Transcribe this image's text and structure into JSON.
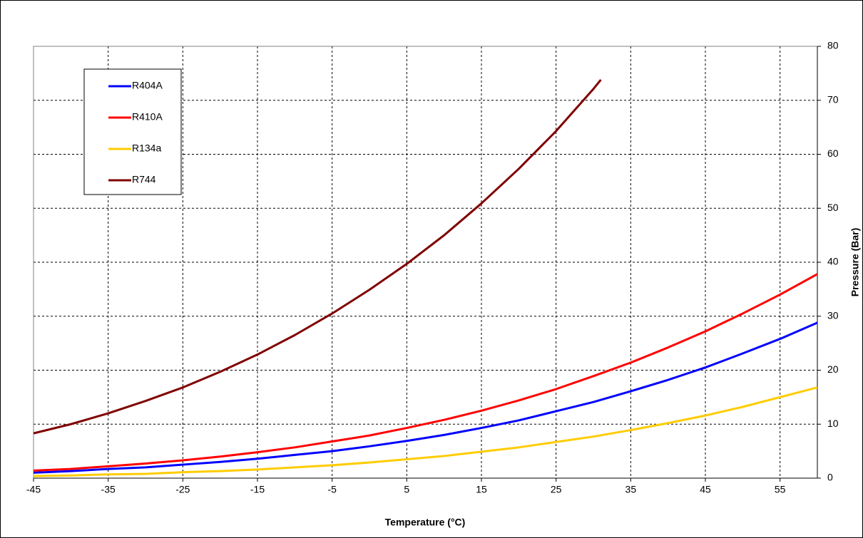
{
  "chart_data": {
    "type": "line",
    "x_label": "Temperature (°C)",
    "y_label": "Pressure (Bar)",
    "xlim": [
      -45,
      60
    ],
    "xticks": [
      -45,
      -35,
      -25,
      -15,
      -5,
      5,
      15,
      25,
      35,
      45,
      55
    ],
    "ylim": [
      0,
      80
    ],
    "yticks": [
      0,
      10,
      20,
      30,
      40,
      50,
      60,
      70,
      80
    ],
    "grid": true,
    "legend": "upper-left",
    "y_axis_side": "right",
    "series": [
      {
        "name": "R404A",
        "color": "#0000ff",
        "x": [
          -45,
          -40,
          -35,
          -30,
          -25,
          -20,
          -15,
          -10,
          -5,
          0,
          5,
          10,
          15,
          20,
          25,
          30,
          35,
          40,
          45,
          50,
          55,
          60
        ],
        "values": [
          1.0,
          1.3,
          1.7,
          2.0,
          2.5,
          3.0,
          3.6,
          4.3,
          5.0,
          5.9,
          6.9,
          8.0,
          9.3,
          10.7,
          12.4,
          14.1,
          16.1,
          18.2,
          20.5,
          23.1,
          25.8,
          28.8
        ]
      },
      {
        "name": "R410A",
        "color": "#ff0000",
        "x": [
          -45,
          -40,
          -35,
          -30,
          -25,
          -20,
          -15,
          -10,
          -5,
          0,
          5,
          10,
          15,
          20,
          25,
          30,
          35,
          40,
          45,
          50,
          55,
          60
        ],
        "values": [
          1.4,
          1.7,
          2.2,
          2.7,
          3.3,
          4.0,
          4.8,
          5.7,
          6.8,
          7.9,
          9.3,
          10.8,
          12.5,
          14.4,
          16.5,
          18.9,
          21.4,
          24.2,
          27.2,
          30.5,
          34.0,
          37.8
        ]
      },
      {
        "name": "R134a",
        "color": "#ffcc00",
        "x": [
          -45,
          -40,
          -35,
          -30,
          -25,
          -20,
          -15,
          -10,
          -5,
          0,
          5,
          10,
          15,
          20,
          25,
          30,
          35,
          40,
          45,
          50,
          55,
          60
        ],
        "values": [
          0.4,
          0.5,
          0.7,
          0.8,
          1.1,
          1.3,
          1.6,
          2.0,
          2.4,
          2.9,
          3.5,
          4.1,
          4.9,
          5.7,
          6.7,
          7.7,
          8.9,
          10.2,
          11.6,
          13.2,
          15.0,
          16.8
        ]
      },
      {
        "name": "R744",
        "color": "#800000",
        "x": [
          -45,
          -40,
          -35,
          -30,
          -25,
          -20,
          -15,
          -10,
          -5,
          0,
          5,
          10,
          15,
          20,
          25,
          30,
          31
        ],
        "values": [
          8.3,
          10.0,
          12.0,
          14.3,
          16.8,
          19.7,
          22.9,
          26.5,
          30.5,
          34.9,
          39.7,
          45.0,
          50.9,
          57.3,
          64.3,
          72.1,
          73.8
        ]
      }
    ]
  }
}
